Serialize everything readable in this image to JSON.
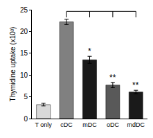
{
  "chart_data": {
    "type": "bar",
    "y_label": "Thymidine uptake (x10³)",
    "categories": [
      "T only",
      "cDC",
      "mDC",
      "oDC",
      "mdDC"
    ],
    "values": [
      3.2,
      22.2,
      13.5,
      7.7,
      6.1
    ],
    "errors": [
      0.3,
      0.6,
      0.8,
      0.6,
      0.4
    ],
    "colors": [
      "#d9d9d9",
      "#808080",
      "#1a1a1a",
      "#595959",
      "#1a1a1a"
    ],
    "ylim": [
      0,
      25
    ],
    "yticks": [
      0,
      5,
      10,
      15,
      20,
      25
    ],
    "grid": false,
    "annotations": [
      {
        "category": "mDC",
        "text": "*"
      },
      {
        "category": "oDC",
        "text": "**"
      },
      {
        "category": "mdDC",
        "text": "**"
      }
    ]
  }
}
